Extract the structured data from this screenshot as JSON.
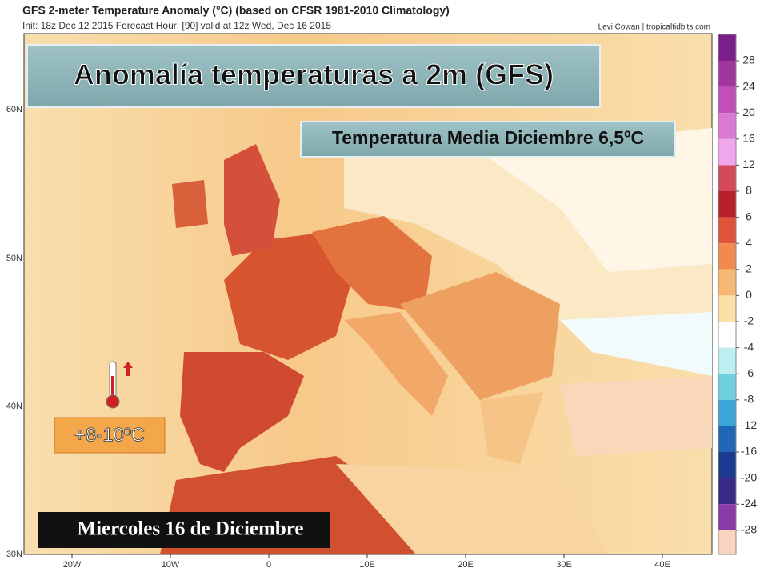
{
  "header": {
    "title": "GFS 2-meter Temperature Anomaly (°C) (based on CFSR 1981-2010 Climatology)",
    "subtitle": "Init: 18z Dec 12 2015   Forecast Hour: [90]   valid at 12z Wed, Dec 16 2015",
    "credit": "Levi Cowan | tropicaltidbits.com"
  },
  "overlay": {
    "headline": "Anomalía temperaturas a 2m (GFS)",
    "mean_note": "Temperatura Media Diciembre 6,5ºC",
    "anomaly_badge": "+8-10ºC",
    "date_banner": "Miercoles 16 de Diciembre"
  },
  "map": {
    "x_labels": [
      "20W",
      "10W",
      "0",
      "10E",
      "20E",
      "30E",
      "40E"
    ],
    "y_labels": [
      "60N",
      "50N",
      "40N",
      "30N"
    ]
  },
  "colorbar": {
    "ticks": [
      28,
      24,
      20,
      16,
      12,
      8,
      6,
      4,
      2,
      0,
      -2,
      -4,
      -6,
      -8,
      -12,
      -16,
      -20,
      -24,
      -28
    ],
    "colors": [
      "#7a1f8c",
      "#a2369f",
      "#c050b8",
      "#db78d2",
      "#f0a6ea",
      "#d44a58",
      "#b8202c",
      "#e0553a",
      "#f08a4e",
      "#f6b872",
      "#fbe0a6",
      "#ffffff",
      "#bdeef0",
      "#6fd0e0",
      "#3aa6d8",
      "#2266b8",
      "#1c3a90",
      "#3a2a88",
      "#8a3aa8",
      "#f8d4c0"
    ]
  }
}
